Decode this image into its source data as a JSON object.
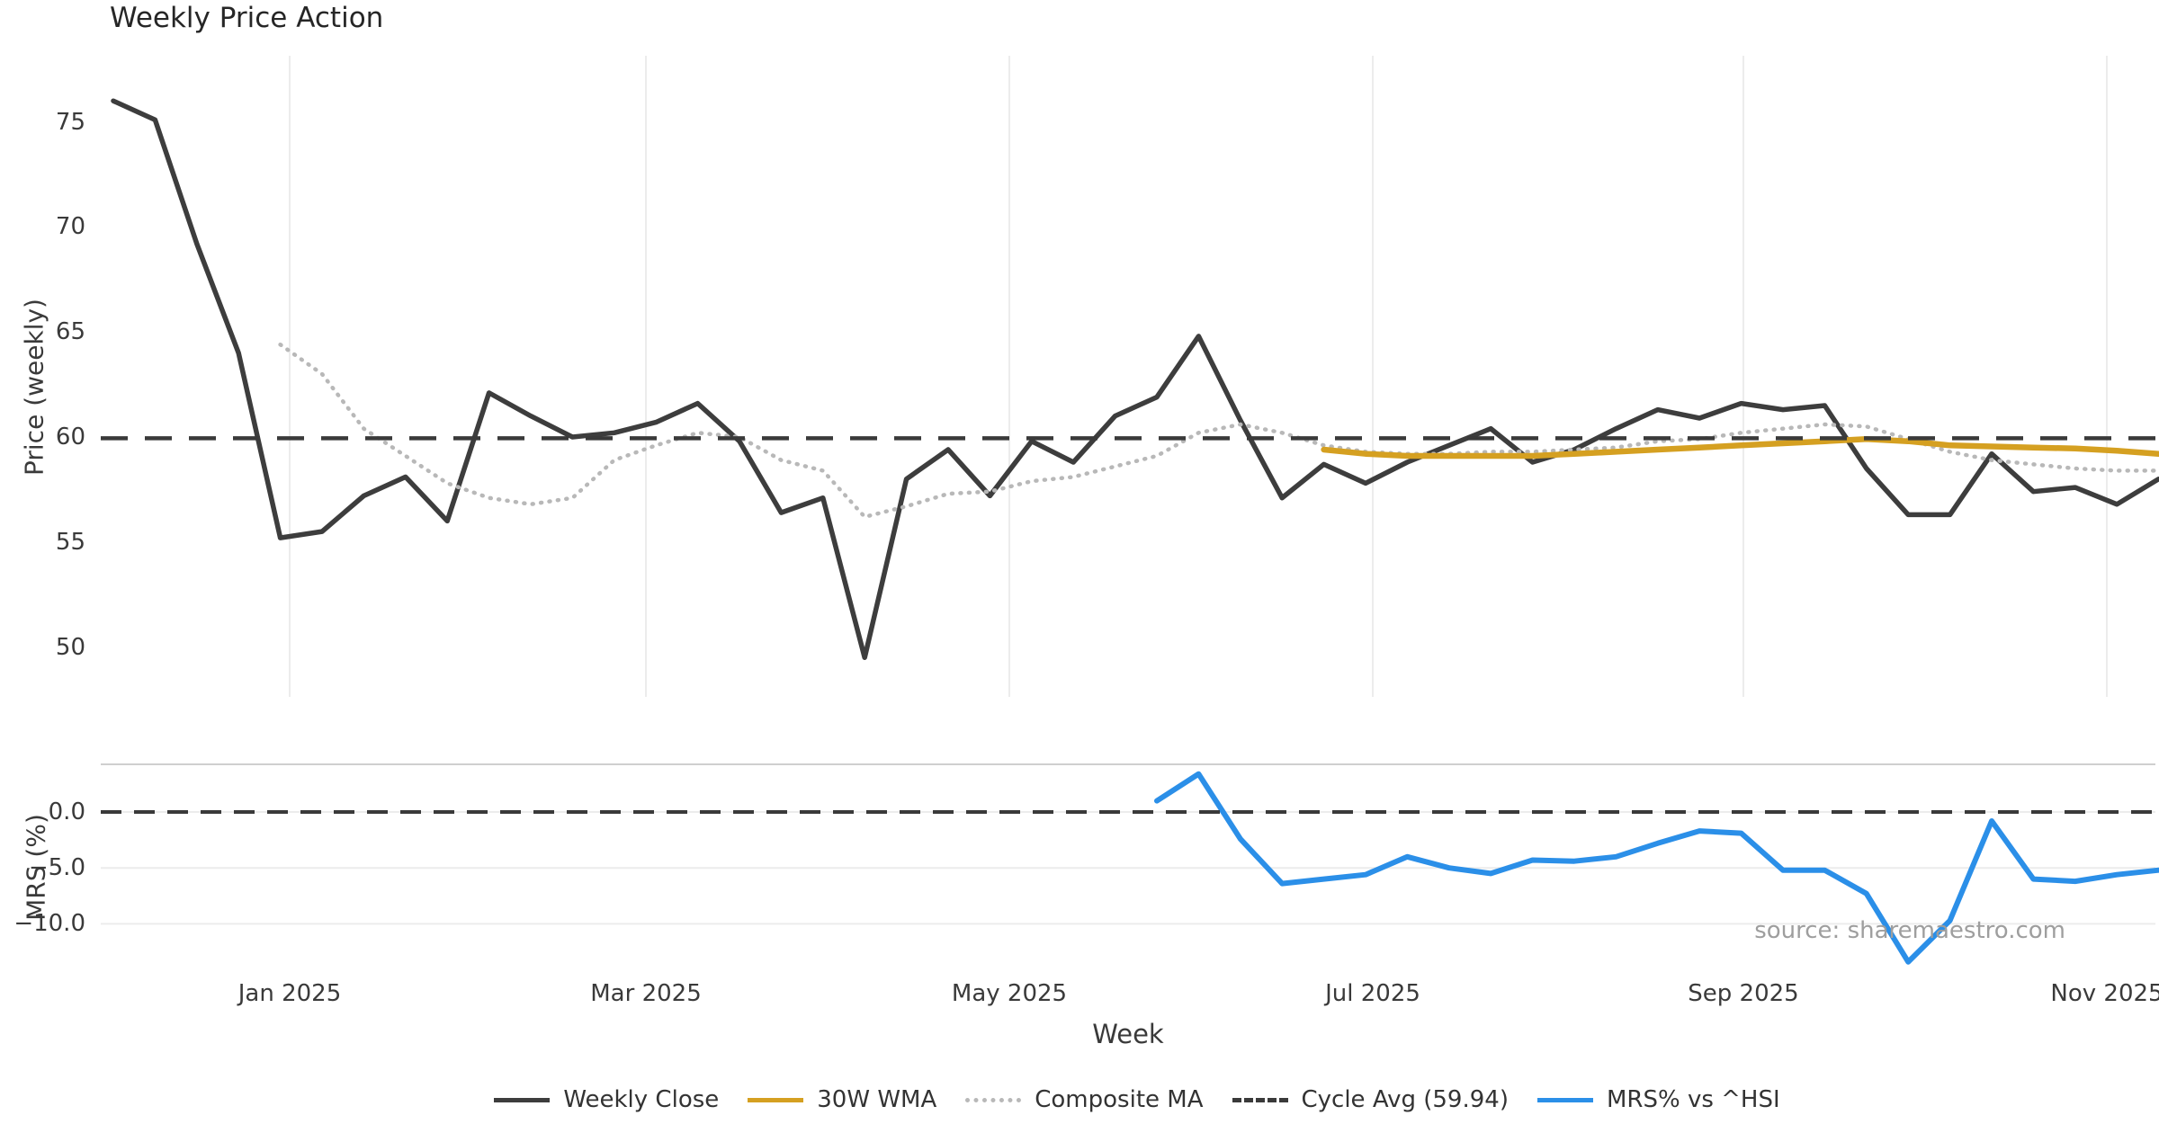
{
  "title": "Weekly Price Action",
  "source": "source: sharemaestro.com",
  "axes": {
    "price_ylabel": "Price (weekly)",
    "mrs_ylabel": "MRS (%)",
    "xlabel": "Week",
    "price_ytick_labels": [
      "75",
      "70",
      "65",
      "60",
      "55",
      "50"
    ],
    "price_ytick_values": [
      75,
      70,
      65,
      60,
      55,
      50
    ],
    "mrs_ytick_labels": [
      "0.0",
      "−5.0",
      "−10.0"
    ],
    "mrs_ytick_values": [
      0,
      -5,
      -10
    ],
    "xtick_labels": [
      "Jan 2025",
      "Mar 2025",
      "May 2025",
      "Jul 2025",
      "Sep 2025",
      "Nov 2025"
    ]
  },
  "legend": [
    {
      "label": "Weekly Close",
      "color": "#3d3d3d",
      "style": "solid"
    },
    {
      "label": "30W WMA",
      "color": "#d5a021",
      "style": "solid"
    },
    {
      "label": "Composite MA",
      "color": "#b8b8b8",
      "style": "dotted"
    },
    {
      "label": "Cycle Avg (59.94)",
      "color": "#3a3a3a",
      "style": "dashed"
    },
    {
      "label": "MRS% vs ^HSI",
      "color": "#2b8fe8",
      "style": "solid"
    }
  ],
  "colors": {
    "weekly_close": "#3d3d3d",
    "wma": "#d5a021",
    "composite": "#b8b8b8",
    "cycle_avg": "#3a3a3a",
    "mrs": "#2b8fe8",
    "gridline": "#ececec",
    "panel_border": "#cfcfcf"
  },
  "chart_data": [
    {
      "type": "line",
      "panel": "price",
      "title": "Weekly Price Action",
      "xlabel": "Week",
      "ylabel": "Price (weekly)",
      "ylim": [
        47.5,
        78.2
      ],
      "x_unit": "weekly index, Dec 2024 through Nov 2025",
      "xtick_labels": [
        "Jan 2025",
        "Mar 2025",
        "May 2025",
        "Jul 2025",
        "Sep 2025",
        "Nov 2025"
      ],
      "grid": "vertical only",
      "cycle_avg_reference": 59.94,
      "series": [
        {
          "name": "Weekly Close",
          "start_week": 0,
          "values": [
            76.0,
            75.1,
            69.2,
            64.0,
            55.2,
            55.5,
            57.2,
            58.1,
            56.0,
            62.1,
            61.0,
            60.0,
            60.2,
            60.7,
            61.6,
            59.8,
            56.4,
            57.1,
            49.5,
            58.0,
            59.4,
            57.2,
            59.8,
            58.8,
            61.0,
            61.9,
            64.8,
            60.8,
            57.1,
            58.7,
            57.8,
            58.8,
            59.6,
            60.4,
            58.8,
            59.4,
            60.4,
            61.3,
            60.9,
            61.6,
            61.3,
            61.5,
            58.5,
            56.3,
            56.3,
            59.2,
            57.4,
            57.6,
            56.8,
            58.0
          ]
        },
        {
          "name": "Composite MA",
          "start_week": 4,
          "values": [
            64.4,
            63.0,
            60.4,
            59.1,
            57.8,
            57.1,
            56.8,
            57.1,
            58.9,
            59.6,
            60.2,
            60.0,
            58.9,
            58.4,
            56.2,
            56.7,
            57.3,
            57.4,
            57.9,
            58.1,
            58.6,
            59.1,
            60.2,
            60.6,
            60.2,
            59.6,
            59.3,
            59.2,
            59.2,
            59.3,
            59.3,
            59.4,
            59.5,
            59.8,
            59.9,
            60.2,
            60.4,
            60.6,
            60.5,
            59.9,
            59.3,
            58.9,
            58.7,
            58.5,
            58.4,
            58.4
          ]
        },
        {
          "name": "30W WMA",
          "start_week": 29,
          "values": [
            59.4,
            59.2,
            59.1,
            59.1,
            59.1,
            59.1,
            59.2,
            59.3,
            59.4,
            59.5,
            59.6,
            59.7,
            59.8,
            59.9,
            59.8,
            59.6,
            59.55,
            59.5,
            59.45,
            59.35,
            59.2
          ]
        },
        {
          "name": "Cycle Avg (59.94)",
          "type": "hline",
          "value": 59.94
        }
      ]
    },
    {
      "type": "line",
      "panel": "mrs",
      "ylabel": "MRS (%)",
      "ylim": [
        -14.5,
        4.3
      ],
      "grid": "horizontal only",
      "zero_reference": 0.0,
      "series": [
        {
          "name": "MRS% vs ^HSI",
          "start_week": 25,
          "values": [
            1.0,
            3.4,
            -2.4,
            -6.4,
            -6.0,
            -5.6,
            -4.0,
            -5.0,
            -5.5,
            -4.3,
            -4.4,
            -4.0,
            -2.8,
            -1.7,
            -1.9,
            -5.2,
            -5.2,
            -7.3,
            -13.4,
            -9.7,
            -0.8,
            -6.0,
            -6.2,
            -5.6,
            -5.2
          ]
        },
        {
          "name": "Zero line",
          "type": "hline",
          "value": 0.0
        }
      ]
    }
  ]
}
